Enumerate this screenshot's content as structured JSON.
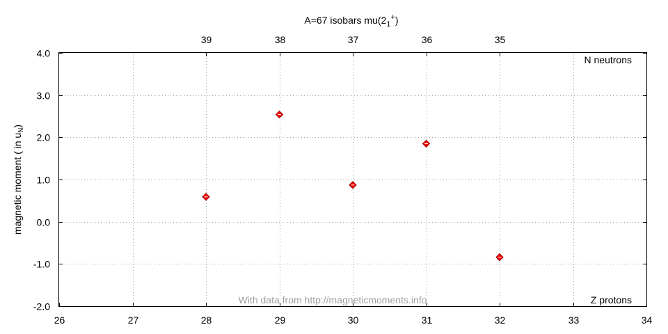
{
  "chart_data": {
    "type": "scatter",
    "title": "A=67 isobars mu(2",
    "title_sub": "1",
    "title_sup": "+",
    "title_close": ")",
    "xlabel": "",
    "ylabel": "magnetic moment ( in u",
    "ylabel_sub": "N",
    "ylabel_close": ")",
    "xlim": [
      26,
      34
    ],
    "ylim": [
      -2.0,
      4.0
    ],
    "x_ticks": [
      "26",
      "27",
      "28",
      "29",
      "30",
      "31",
      "32",
      "33",
      "34"
    ],
    "y_ticks": [
      "4.0",
      "3.0",
      "2.0",
      "1.0",
      "0.0",
      "-1.0",
      "-2.0"
    ],
    "top_ticks": [
      {
        "x": 28,
        "label": "39"
      },
      {
        "x": 29,
        "label": "38"
      },
      {
        "x": 30,
        "label": "37"
      },
      {
        "x": 31,
        "label": "36"
      },
      {
        "x": 32,
        "label": "35"
      }
    ],
    "corner_label_top": "N neutrons",
    "corner_label_bottom": "Z protons",
    "watermark": "With data from http://magneticmoments.info",
    "grid": true,
    "marker_color": "#ff0000",
    "points": [
      {
        "x": 28,
        "y": 0.59
      },
      {
        "x": 29,
        "y": 2.54
      },
      {
        "x": 30,
        "y": 0.87
      },
      {
        "x": 31,
        "y": 1.85
      },
      {
        "x": 32,
        "y": -0.84
      }
    ]
  }
}
